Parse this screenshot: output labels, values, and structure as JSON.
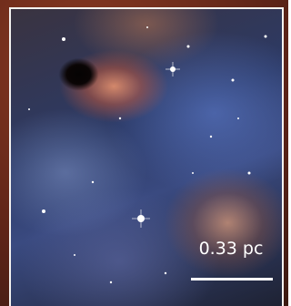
{
  "scale_bar": {
    "label": "0.33 pc"
  }
}
